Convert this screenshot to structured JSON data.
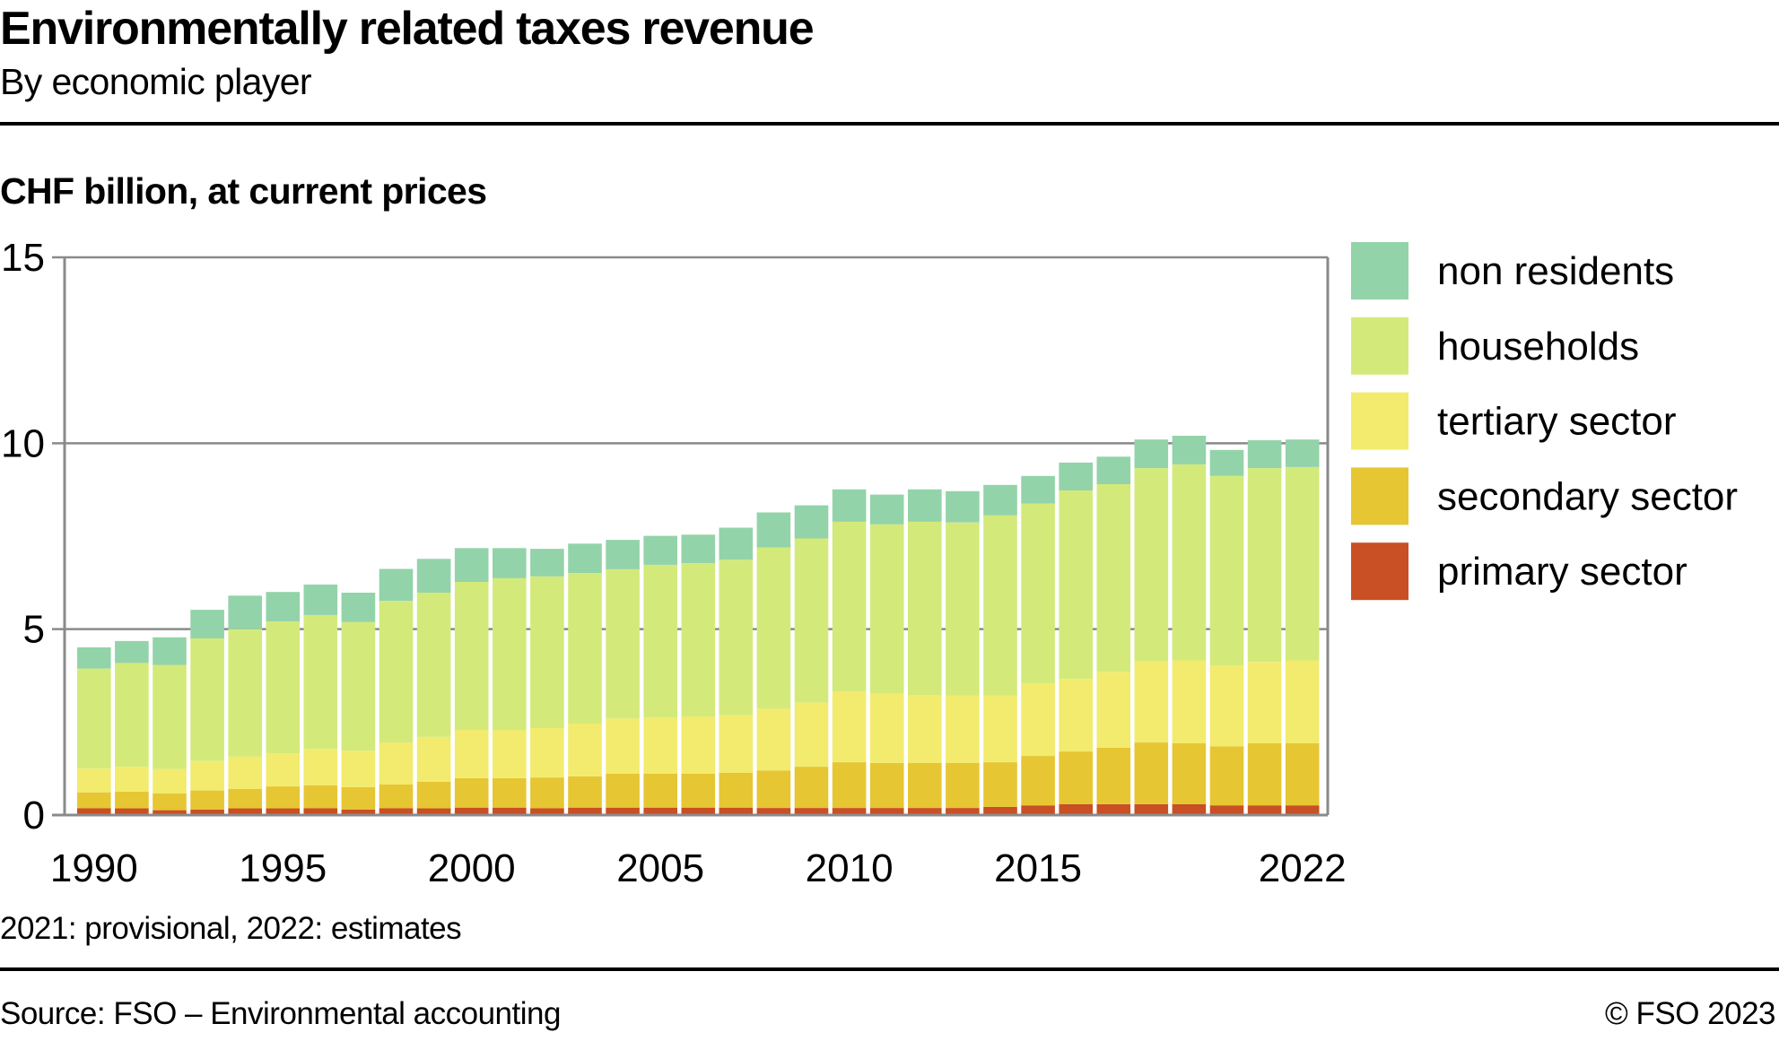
{
  "header": {
    "title": "Environmentally related taxes revenue",
    "subtitle": "By economic player",
    "unit_label": "CHF billion, at current prices"
  },
  "footer": {
    "footnote": "2021: provisional, 2022: estimates",
    "source": "Source: FSO – Environmental accounting",
    "copyright": "© FSO 2023"
  },
  "chart_data": {
    "type": "bar",
    "stacked": true,
    "title": "Environmentally related taxes revenue",
    "subtitle": "By economic player",
    "xlabel": "",
    "ylabel": "CHF billion, at current prices",
    "ylim": [
      0,
      15
    ],
    "yticks": [
      0,
      5,
      10,
      15
    ],
    "grid": true,
    "legend_position": "right",
    "categories": [
      1990,
      1991,
      1992,
      1993,
      1994,
      1995,
      1996,
      1997,
      1998,
      1999,
      2000,
      2001,
      2002,
      2003,
      2004,
      2005,
      2006,
      2007,
      2008,
      2009,
      2010,
      2011,
      2012,
      2013,
      2014,
      2015,
      2016,
      2017,
      2018,
      2019,
      2020,
      2021,
      2022
    ],
    "xtick_labels": [
      "1990",
      "1995",
      "2000",
      "2005",
      "2010",
      "2015",
      "2022"
    ],
    "series": [
      {
        "name": "primary sector",
        "color": "#c94f24",
        "values": [
          0.18,
          0.18,
          0.13,
          0.15,
          0.18,
          0.18,
          0.18,
          0.15,
          0.18,
          0.18,
          0.2,
          0.2,
          0.18,
          0.2,
          0.2,
          0.2,
          0.2,
          0.2,
          0.19,
          0.19,
          0.19,
          0.19,
          0.19,
          0.19,
          0.22,
          0.26,
          0.29,
          0.29,
          0.29,
          0.29,
          0.26,
          0.26,
          0.26
        ]
      },
      {
        "name": "secondary sector",
        "color": "#e6c633",
        "values": [
          0.43,
          0.45,
          0.45,
          0.51,
          0.52,
          0.59,
          0.62,
          0.6,
          0.64,
          0.72,
          0.79,
          0.79,
          0.83,
          0.84,
          0.91,
          0.91,
          0.91,
          0.94,
          1.01,
          1.11,
          1.23,
          1.21,
          1.21,
          1.21,
          1.2,
          1.33,
          1.42,
          1.52,
          1.66,
          1.64,
          1.59,
          1.67,
          1.67
        ]
      },
      {
        "name": "tertiary sector",
        "color": "#f2eb6e",
        "values": [
          0.64,
          0.67,
          0.66,
          0.79,
          0.87,
          0.89,
          0.98,
          0.98,
          1.13,
          1.2,
          1.3,
          1.3,
          1.33,
          1.42,
          1.49,
          1.51,
          1.54,
          1.55,
          1.66,
          1.73,
          1.9,
          1.87,
          1.82,
          1.82,
          1.8,
          1.95,
          1.95,
          2.04,
          2.19,
          2.23,
          2.17,
          2.19,
          2.23
        ]
      },
      {
        "name": "households",
        "color": "#d3ea7a",
        "values": [
          2.69,
          2.79,
          2.8,
          3.3,
          3.43,
          3.55,
          3.6,
          3.46,
          3.81,
          3.88,
          3.98,
          4.08,
          4.08,
          4.05,
          4.01,
          4.11,
          4.12,
          4.18,
          4.34,
          4.41,
          4.57,
          4.55,
          4.67,
          4.65,
          4.84,
          4.84,
          5.07,
          5.05,
          5.19,
          5.27,
          5.1,
          5.21,
          5.2
        ]
      },
      {
        "name": "non residents",
        "color": "#93d3a9",
        "values": [
          0.57,
          0.59,
          0.74,
          0.77,
          0.9,
          0.79,
          0.82,
          0.79,
          0.86,
          0.91,
          0.91,
          0.81,
          0.74,
          0.79,
          0.79,
          0.78,
          0.77,
          0.86,
          0.94,
          0.89,
          0.87,
          0.8,
          0.87,
          0.84,
          0.82,
          0.74,
          0.75,
          0.74,
          0.77,
          0.77,
          0.7,
          0.75,
          0.74
        ]
      }
    ],
    "legend_order": [
      "non residents",
      "households",
      "tertiary sector",
      "secondary sector",
      "primary sector"
    ],
    "notes": "2021: provisional, 2022: estimates",
    "source": "Source: FSO – Environmental accounting"
  }
}
